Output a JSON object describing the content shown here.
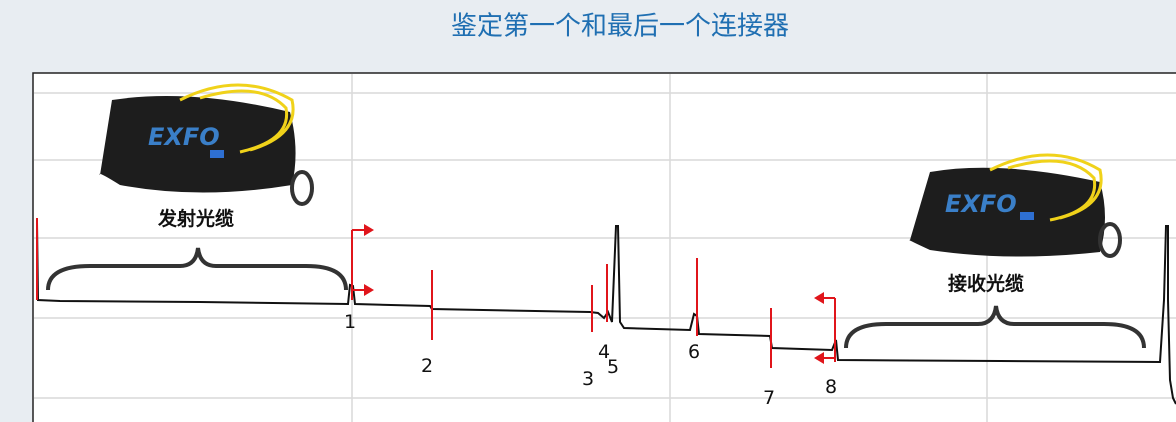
{
  "title": "鉴定第一个和最后一个连接器",
  "launch_cable": "发射光缆",
  "receive_cable": "接收光缆",
  "brand": "EXFO",
  "connectors": [
    "1",
    "2",
    "3",
    "4",
    "5",
    "6",
    "7",
    "8"
  ]
}
